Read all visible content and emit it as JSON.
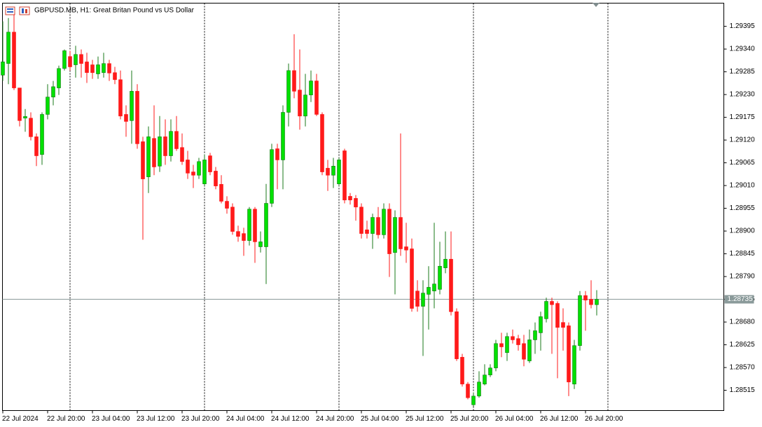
{
  "chart_data": {
    "type": "candlestick",
    "title": "GBPUSD.MB, H1:",
    "subtitle": "Great Britan Pound vs US Dollar",
    "categories": [
      "22 Jul 2024",
      null,
      null,
      null,
      null,
      null,
      null,
      null,
      "22 Jul 20:00",
      null,
      null,
      null,
      null,
      null,
      null,
      null,
      "23 Jul 04:00",
      null,
      null,
      null,
      null,
      null,
      null,
      null,
      "23 Jul 12:00",
      null,
      null,
      null,
      null,
      null,
      null,
      null,
      "23 Jul 20:00",
      null,
      null,
      null,
      null,
      null,
      null,
      null,
      "24 Jul 04:00",
      null,
      null,
      null,
      null,
      null,
      null,
      null,
      "24 Jul 12:00",
      null,
      null,
      null,
      null,
      null,
      null,
      null,
      "24 Jul 20:00",
      null,
      null,
      null,
      null,
      null,
      null,
      null,
      "25 Jul 04:00",
      null,
      null,
      null,
      null,
      null,
      null,
      null,
      "25 Jul 12:00",
      null,
      null,
      null,
      null,
      null,
      null,
      null,
      "25 Jul 20:00",
      null,
      null,
      null,
      null,
      null,
      null,
      null,
      "26 Jul 04:00",
      null,
      null,
      null,
      null,
      null,
      null,
      null,
      "26 Jul 12:00",
      null,
      null,
      null,
      null,
      null,
      null,
      null,
      "26 Jul 20:00",
      null,
      null
    ],
    "open": [
      1.29277,
      1.29305,
      1.29381,
      1.29246,
      1.29173,
      1.29173,
      1.29128,
      1.29085,
      1.29182,
      1.29224,
      1.29246,
      1.29293,
      1.29322,
      1.29302,
      1.29327,
      1.29309,
      1.29302,
      1.2928,
      1.29283,
      1.29305,
      1.29283,
      1.29266,
      1.29182,
      1.29167,
      1.29238,
      1.29116,
      1.29031,
      1.29124,
      1.29057,
      1.29128,
      1.29082,
      1.29141,
      1.29102,
      1.29072,
      1.29043,
      1.29035,
      1.29014,
      1.29082,
      1.29045,
      1.29013,
      1.28972,
      1.28958,
      1.28899,
      1.28894,
      1.28877,
      1.28953,
      1.28862,
      1.28862,
      1.28967,
      1.29099,
      1.29072,
      1.29187,
      1.29288,
      1.29241,
      1.29178,
      1.29229,
      1.29263,
      1.29182,
      1.29052,
      1.29035,
      1.29014,
      1.29094,
      1.28984,
      1.28979,
      1.28958,
      1.28903,
      1.28894,
      1.28933,
      1.28891,
      1.28953,
      1.28848,
      1.28933,
      1.28862,
      1.28857,
      1.28755,
      1.28718,
      1.28747,
      1.28755,
      1.28759,
      1.28811,
      1.28832,
      1.28705,
      1.28595,
      1.2853,
      1.2848,
      1.28501,
      1.2853,
      1.28552,
      1.28569,
      1.28628,
      1.28606,
      1.28645,
      1.2864,
      1.28628,
      1.28586,
      1.28637,
      1.28654,
      1.28688,
      1.2873,
      1.28725,
      1.28679,
      1.28671,
      1.2853,
      1.28623,
      1.28744,
      1.28735,
      1.28722
    ],
    "high": [
      1.29407,
      1.29415,
      1.29424,
      1.29246,
      1.29195,
      1.29187,
      1.29136,
      1.29187,
      1.29255,
      1.29263,
      1.293,
      1.29339,
      1.29336,
      1.29348,
      1.29339,
      1.29331,
      1.29314,
      1.29322,
      1.29331,
      1.29314,
      1.29297,
      1.29288,
      1.29204,
      1.29288,
      1.29255,
      1.29128,
      1.29153,
      1.29204,
      1.29178,
      1.2917,
      1.2917,
      1.29178,
      1.29136,
      1.29094,
      1.2906,
      1.29077,
      1.29085,
      1.29089,
      1.29055,
      1.29035,
      1.28984,
      1.28967,
      1.28913,
      1.28908,
      1.28958,
      1.28958,
      1.28899,
      1.29014,
      1.29111,
      1.29111,
      1.29204,
      1.29305,
      1.29376,
      1.29339,
      1.2928,
      1.29288,
      1.2928,
      1.29187,
      1.29072,
      1.29077,
      1.29077,
      1.29099,
      1.28992,
      1.28987,
      1.28967,
      1.28925,
      1.28942,
      1.28958,
      1.28967,
      1.28967,
      1.2895,
      1.29136,
      1.2892,
      1.28882,
      1.28781,
      1.28781,
      1.28815,
      1.2892,
      1.28874,
      1.28899,
      1.28899,
      1.28713,
      1.28603,
      1.28535,
      1.2851,
      1.28561,
      1.28578,
      1.28578,
      1.28637,
      1.28654,
      1.28654,
      1.28662,
      1.28649,
      1.28649,
      1.28662,
      1.28679,
      1.28705,
      1.28739,
      1.28739,
      1.2873,
      1.28713,
      1.28679,
      1.28637,
      1.28755,
      1.28755,
      1.28781,
      1.28757
    ],
    "low": [
      1.29263,
      1.29255,
      1.29241,
      1.29153,
      1.2914,
      1.29119,
      1.29057,
      1.2906,
      1.2917,
      1.29204,
      1.29229,
      1.29288,
      1.29288,
      1.29271,
      1.29271,
      1.29258,
      1.29268,
      1.29268,
      1.29271,
      1.29263,
      1.29255,
      1.2917,
      1.29128,
      1.29111,
      1.29099,
      1.28879,
      1.28992,
      1.29035,
      1.29043,
      1.2906,
      1.29068,
      1.29094,
      1.2906,
      1.29026,
      1.29004,
      1.29026,
      1.29009,
      1.29035,
      1.29001,
      1.28967,
      1.28942,
      1.28891,
      1.28874,
      1.2884,
      1.28865,
      1.28823,
      1.28848,
      1.28772,
      1.28958,
      1.29001,
      1.29001,
      1.29153,
      1.29221,
      1.29145,
      1.29153,
      1.29212,
      1.29178,
      1.29035,
      1.28997,
      1.29004,
      1.29009,
      1.28967,
      1.28964,
      1.28925,
      1.28882,
      1.28882,
      1.28857,
      1.28882,
      1.28882,
      1.28789,
      1.28747,
      1.2884,
      1.28823,
      1.28705,
      1.28705,
      1.28598,
      1.28662,
      1.28713,
      1.28747,
      1.28798,
      1.28696,
      1.28586,
      1.28524,
      1.28493,
      1.28476,
      1.28497,
      1.28527,
      1.28547,
      1.28561,
      1.28595,
      1.28586,
      1.28628,
      1.28611,
      1.28573,
      1.28581,
      1.28603,
      1.28611,
      1.28679,
      1.28603,
      1.28544,
      1.28611,
      1.28501,
      1.28518,
      1.28611,
      1.28659,
      1.28713,
      1.28696
    ],
    "close": [
      1.29309,
      1.29381,
      1.29246,
      1.29167,
      1.29177,
      1.29128,
      1.29082,
      1.29182,
      1.29224,
      1.29249,
      1.29293,
      1.29336,
      1.29297,
      1.29327,
      1.29305,
      1.29283,
      1.29283,
      1.29302,
      1.29305,
      1.29282,
      1.29266,
      1.29178,
      1.29165,
      1.29238,
      1.29111,
      1.29026,
      1.29128,
      1.29055,
      1.29128,
      1.29082,
      1.29141,
      1.29099,
      1.29068,
      1.2904,
      1.29035,
      1.29068,
      1.29072,
      1.29043,
      1.29009,
      1.28972,
      1.28955,
      1.28899,
      1.28887,
      1.28877,
      1.28953,
      1.28874,
      1.28874,
      1.28967,
      1.29097,
      1.29072,
      1.29187,
      1.29288,
      1.29238,
      1.29178,
      1.29229,
      1.29263,
      1.29182,
      1.29043,
      1.29035,
      1.29057,
      1.29072,
      1.28975,
      1.28975,
      1.28958,
      1.28894,
      1.28894,
      1.28933,
      1.28891,
      1.28953,
      1.28845,
      1.28933,
      1.28857,
      1.28854,
      1.28713,
      1.28718,
      1.2875,
      1.28764,
      1.28772,
      1.28815,
      1.28832,
      1.28705,
      1.28591,
      1.2853,
      1.28497,
      1.28501,
      1.28535,
      1.28552,
      1.28569,
      1.28628,
      1.2862,
      1.28645,
      1.28637,
      1.28625,
      1.2859,
      1.28637,
      1.28659,
      1.28693,
      1.2873,
      1.28722,
      1.28667,
      1.28667,
      1.28535,
      1.28623,
      1.28744,
      1.28733,
      1.28722,
      1.28735
    ],
    "up_color": "#00e000",
    "down_color": "#ff1a1a",
    "ylim": [
      1.28466,
      1.29451
    ],
    "yticks": [
      1.29395,
      {
        "value": 1.2934,
        "label": "1.29340"
      },
      1.29285,
      {
        "value": 1.2923,
        "label": "1.29230"
      },
      1.29175,
      {
        "value": 1.2912,
        "label": "1.29120"
      },
      1.29065,
      {
        "value": 1.2901,
        "label": "1.29010"
      },
      1.28955,
      {
        "value": 1.289,
        "label": "1.28900"
      },
      1.28845,
      {
        "value": 1.2879,
        "label": "1.28790"
      },
      1.28735,
      {
        "value": 1.2868,
        "label": "1.28680"
      },
      1.28625,
      {
        "value": 1.2857,
        "label": "1.28570"
      },
      1.28515
    ],
    "last_price": 1.28735,
    "period_separators": true
  }
}
